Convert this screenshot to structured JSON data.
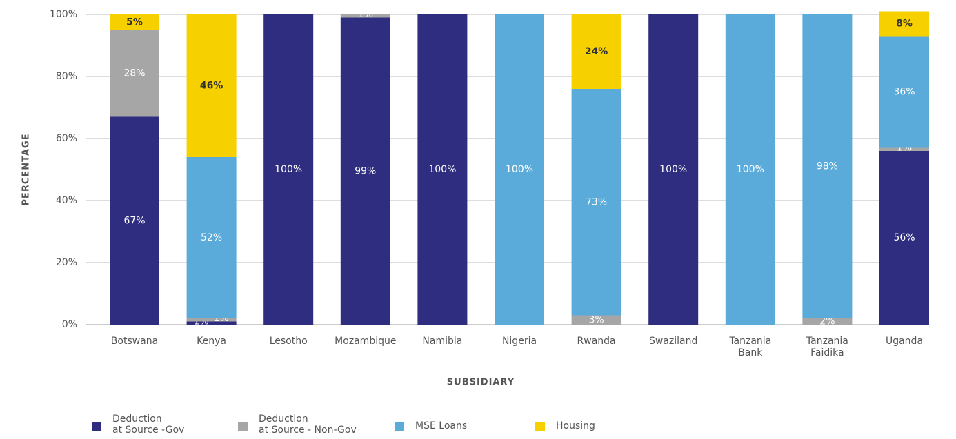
{
  "chart_data": {
    "type": "stacked_bar",
    "categories": [
      "Botswana",
      "Kenya",
      "Lesotho",
      "Mozambique",
      "Namibia",
      "Nigeria",
      "Rwanda",
      "Swaziland",
      "Tanzania\nBank",
      "Tanzania\nFaidika",
      "Uganda"
    ],
    "x_label": "SUBSIDIARY",
    "y_label": "PERCENTAGE",
    "ylim": [
      0,
      100
    ],
    "yticks": [
      {
        "value": 0,
        "label": "0%"
      },
      {
        "value": 20,
        "label": "20%"
      },
      {
        "value": 40,
        "label": "40%"
      },
      {
        "value": 60,
        "label": "60%"
      },
      {
        "value": 80,
        "label": "80%"
      },
      {
        "value": 100,
        "label": "100%"
      }
    ],
    "grid": true,
    "legend": "bottom",
    "series": [
      {
        "name": "Deduction\nat Source -Gov",
        "color": "#2e2d7f",
        "values": [
          67,
          1,
          100,
          99,
          100,
          0,
          0,
          100,
          0,
          0,
          56
        ],
        "value_labels": [
          "67%",
          "1%",
          "100%",
          "99%",
          "100%",
          null,
          null,
          "100%",
          null,
          null,
          "56%"
        ]
      },
      {
        "name": "Deduction\nat Source - Non-Gov",
        "color": "#a6a6a6",
        "values": [
          28,
          1,
          0,
          1,
          0,
          0,
          3,
          0,
          0,
          2,
          1
        ],
        "value_labels": [
          "28%",
          "1%",
          null,
          "1%",
          null,
          null,
          "3%",
          null,
          null,
          "2%",
          "1%"
        ]
      },
      {
        "name": "MSE Loans",
        "color": "#5aabd9",
        "values": [
          0,
          52,
          0,
          0,
          0,
          100,
          73,
          0,
          100,
          98,
          36
        ],
        "value_labels": [
          null,
          "52%",
          null,
          null,
          null,
          "100%",
          "73%",
          null,
          "100%",
          "98%",
          "36%"
        ]
      },
      {
        "name": "Housing",
        "color": "#f7d000",
        "values": [
          5,
          46,
          0,
          0,
          0,
          0,
          24,
          0,
          0,
          0,
          8
        ],
        "value_labels": [
          "5%",
          "46%",
          null,
          null,
          null,
          null,
          "24%",
          null,
          null,
          null,
          "8%"
        ]
      }
    ]
  }
}
